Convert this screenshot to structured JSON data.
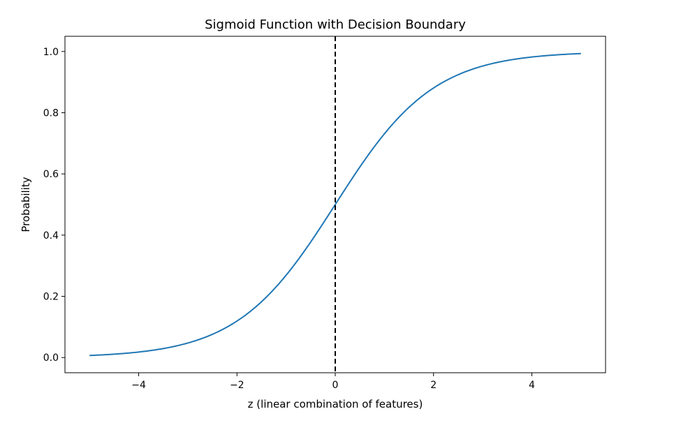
{
  "chart_data": {
    "type": "line",
    "title": "Sigmoid Function with Decision Boundary",
    "xlabel": "z (linear combination of features)",
    "ylabel": "Probability",
    "xlim": [
      -5.5,
      5.5
    ],
    "ylim": [
      -0.0497,
      1.0497
    ],
    "x_ticks": [
      -4,
      -2,
      0,
      2,
      4
    ],
    "x_tick_labels": [
      "−4",
      "−2",
      "0",
      "2",
      "4"
    ],
    "y_ticks": [
      0.0,
      0.2,
      0.4,
      0.6,
      0.8,
      1.0
    ],
    "y_tick_labels": [
      "0.0",
      "0.2",
      "0.4",
      "0.6",
      "0.8",
      "1.0"
    ],
    "grid": false,
    "series": [
      {
        "color": "#1f77b4",
        "x": [
          -5,
          -4.5,
          -4,
          -3.5,
          -3,
          -2.5,
          -2,
          -1.5,
          -1,
          -0.5,
          0,
          0.5,
          1,
          1.5,
          2,
          2.5,
          3,
          3.5,
          4,
          4.5,
          5
        ],
        "y": [
          0.0067,
          0.011,
          0.018,
          0.0293,
          0.0474,
          0.0759,
          0.1192,
          0.1824,
          0.2689,
          0.3775,
          0.5,
          0.6225,
          0.7311,
          0.8176,
          0.8808,
          0.9241,
          0.9526,
          0.9707,
          0.982,
          0.989,
          0.9933
        ]
      }
    ],
    "decision_boundary": {
      "x": 0,
      "color": "#000000",
      "style": "dashed"
    }
  }
}
